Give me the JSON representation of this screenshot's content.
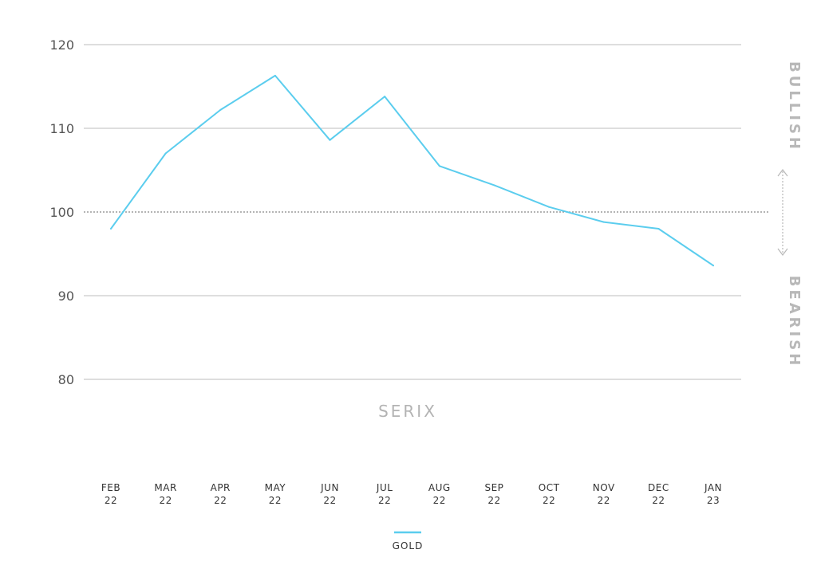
{
  "colors": {
    "series": "#5bcdee",
    "grid": "#bdbdbd",
    "reference": "#888888",
    "muted_label": "#b8b8b8"
  },
  "watermark": "SERIX",
  "side_labels": {
    "top": "BULLISH",
    "bottom": "BEARISH"
  },
  "chart_data": {
    "type": "line",
    "title": "",
    "xlabel": "",
    "ylabel": "",
    "ylim": [
      80,
      120
    ],
    "yticks": [
      "120",
      "110",
      "100",
      "90",
      "80"
    ],
    "reference_line": 100,
    "grid": true,
    "legend_position": "bottom-center",
    "categories": [
      [
        "FEB",
        "22"
      ],
      [
        "MAR",
        "22"
      ],
      [
        "APR",
        "22"
      ],
      [
        "MAY",
        "22"
      ],
      [
        "JUN",
        "22"
      ],
      [
        "JUL",
        "22"
      ],
      [
        "AUG",
        "22"
      ],
      [
        "SEP",
        "22"
      ],
      [
        "OCT",
        "22"
      ],
      [
        "NOV",
        "22"
      ],
      [
        "DEC",
        "22"
      ],
      [
        "JAN",
        "23"
      ]
    ],
    "series": [
      {
        "name": "GOLD",
        "values": [
          98.0,
          107.0,
          112.2,
          116.3,
          108.6,
          113.8,
          105.5,
          103.2,
          100.6,
          98.8,
          98.0,
          93.6
        ]
      }
    ]
  }
}
